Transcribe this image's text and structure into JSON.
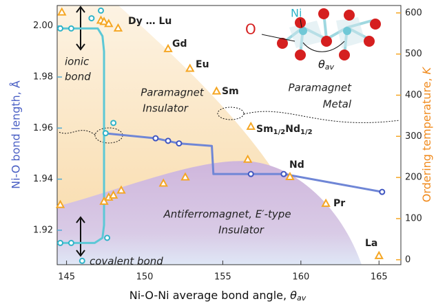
{
  "chart_data": {
    "type": "scatter",
    "x_label": {
      "text": "Ni-O-Ni average bond angle, ",
      "symbol": "θ",
      "subscript": "av"
    },
    "y_label": "Ni-O bond length, Å",
    "y2_label": {
      "text": "Ordering temperature, ",
      "symbol": "K"
    },
    "xlim": [
      144.4,
      166.4
    ],
    "xticks": [
      145,
      150,
      155,
      160,
      165
    ],
    "ylim": [
      1.9065,
      2.008
    ],
    "yticks": [
      1.92,
      1.94,
      1.96,
      1.98,
      {
        "value": 2.0,
        "label": "2.00"
      }
    ],
    "y2lim": [
      -12,
      618
    ],
    "y2ticks": [
      0,
      100,
      200,
      300,
      400,
      500,
      600
    ],
    "series": [
      {
        "style": "line",
        "color": "#6f86d6",
        "x": [
          147.4,
          150.7,
          152.2,
          154.3,
          154.4,
          158.9,
          165.2
        ],
        "values": [
          1.958,
          1.956,
          1.954,
          1.953,
          1.942,
          1.942,
          1.935
        ]
      },
      {
        "style": "line",
        "color": "#5cc8d6",
        "x": [
          144.4,
          147.0,
          147.3,
          147.4,
          147.4,
          147.3,
          146.8,
          144.4
        ],
        "values": [
          1.999,
          1.999,
          1.996,
          1.99,
          1.922,
          1.917,
          1.915,
          1.915
        ]
      },
      {
        "style": "markers",
        "color": "#3f55c0",
        "x": [
          150.7,
          151.5,
          152.2,
          156.8,
          158.9,
          165.2
        ],
        "values": [
          1.956,
          1.955,
          1.954,
          1.942,
          1.942,
          1.935
        ]
      },
      {
        "style": "markers",
        "color": "#2fb3c8",
        "x": [
          144.6,
          145.3,
          146.6,
          147.2,
          147.5,
          148.0,
          144.6,
          145.3,
          146.0,
          147.6
        ],
        "values": [
          1.999,
          1.999,
          2.003,
          2.006,
          1.958,
          1.962,
          1.915,
          1.915,
          1.908,
          1.917
        ]
      },
      {
        "style": "triangles",
        "axis": "y2",
        "color": "#f5a623",
        "x": [
          144.7,
          147.2,
          147.4,
          147.7,
          148.3,
          151.5,
          152.9,
          154.6,
          156.8,
          159.3,
          161.6,
          165.0,
          144.6,
          147.4,
          147.7,
          148.0,
          148.5,
          151.2,
          152.6,
          156.6
        ],
        "values": [
          602,
          582,
          579,
          574,
          563,
          513,
          465,
          410,
          324,
          202,
          137,
          10,
          134,
          142,
          152,
          157,
          169,
          186,
          201,
          244
        ]
      }
    ],
    "annotations": [
      "ionic",
      "bond",
      "covalent  bond",
      "Paramagnet",
      "Insulator",
      "Paramagnet",
      "Metal",
      "Antiferromagnet, E′-type",
      "Insulator"
    ],
    "compound_labels": [
      "Dy … Lu",
      "Gd",
      "Eu",
      "Sm",
      "Nd",
      "Pr",
      "La"
    ],
    "mixed_label": [
      "Sm",
      "1/2",
      "Nd",
      "1/2"
    ],
    "structure_labels": {
      "ni": "Ni",
      "o": "O",
      "angle": "θ",
      "angle_sub": "av"
    }
  }
}
